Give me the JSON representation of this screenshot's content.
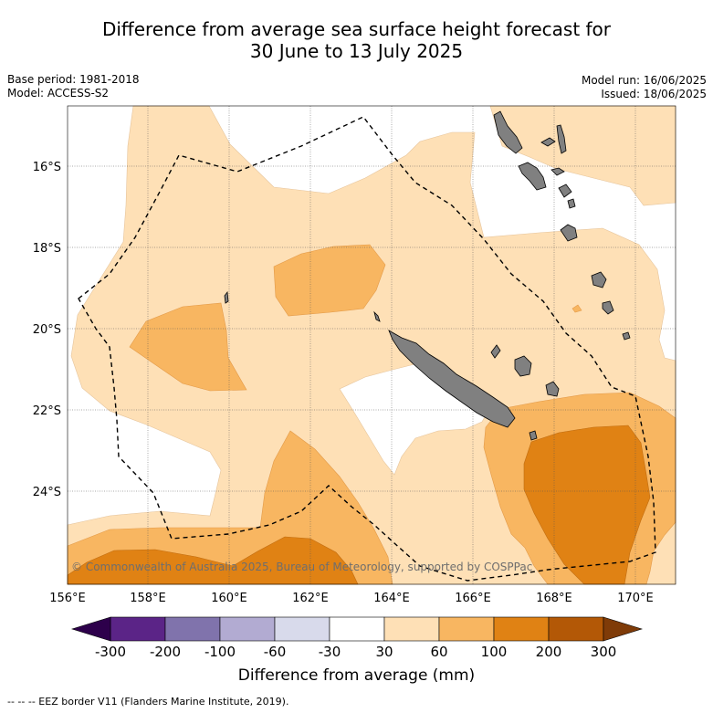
{
  "title_line1": "Difference from average sea surface height forecast for",
  "title_line2": "30 June to 13 July 2025",
  "base_period": "Base period: 1981-2018",
  "model": "Model: ACCESS-S2",
  "model_run": "Model run: 16/06/2025",
  "issued": "Issued: 18/06/2025",
  "lat_labels": [
    "16°S",
    "18°S",
    "20°S",
    "22°S",
    "24°S"
  ],
  "lon_labels": [
    "156°E",
    "158°E",
    "160°E",
    "162°E",
    "164°E",
    "166°E",
    "168°E",
    "170°E"
  ],
  "copyright": "© Commonwealth of Australia 2025, Bureau of Meteorology, supported by COSPPac",
  "colorbar": {
    "title": "Difference from average (mm)",
    "ticks": [
      "-300",
      "-200",
      "-100",
      "-60",
      "-30",
      "30",
      "60",
      "100",
      "200",
      "300"
    ],
    "colors": [
      "#5b2487",
      "#8073ac",
      "#b2abd2",
      "#d8daeb",
      "#ffffff",
      "#fee0b6",
      "#f8b661",
      "#e08214",
      "#b35806"
    ],
    "under_color": "#2d004b",
    "over_color": "#7f3b08"
  },
  "land_color": "#808080",
  "eez_legend": "-- -- -- EEZ border V11 (Flanders Marine Institute, 2019)."
}
